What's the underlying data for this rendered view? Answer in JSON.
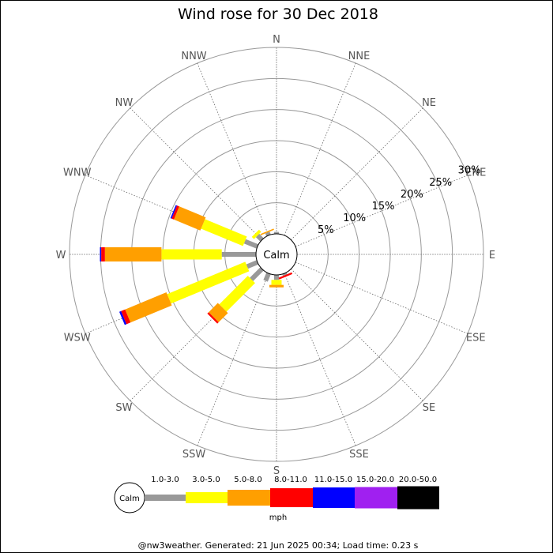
{
  "chart_data": {
    "type": "wind-rose",
    "title": "Wind rose for 30 Dec 2018",
    "unit": "mph",
    "center_label": "Calm",
    "directions": [
      "N",
      "NNE",
      "NE",
      "ENE",
      "E",
      "ESE",
      "SE",
      "SSE",
      "S",
      "SSW",
      "SW",
      "WSW",
      "W",
      "WNW",
      "NW",
      "NNW"
    ],
    "radial_ticks": [
      "5%",
      "10%",
      "15%",
      "20%",
      "25%",
      "30%"
    ],
    "radial_values": [
      5,
      10,
      15,
      20,
      25,
      30
    ],
    "rmax": 30,
    "speed_bins": [
      {
        "label": "1.0-3.0",
        "color": "#999999"
      },
      {
        "label": "3.0-5.0",
        "color": "#ffff00"
      },
      {
        "label": "5.0-8.0",
        "color": "#ff9f00"
      },
      {
        "label": "8.0-11.0",
        "color": "#ff0000"
      },
      {
        "label": "11.0-15.0",
        "color": "#0000ff"
      },
      {
        "label": "15.0-20.0",
        "color": "#a020f0"
      },
      {
        "label": "20.0-50.0",
        "color": "#000000"
      }
    ],
    "series": [
      {
        "direction": "NNW",
        "values": [
          0.5,
          0.0,
          0.2,
          0.0,
          0.0,
          0.0,
          0.0
        ]
      },
      {
        "direction": "N",
        "values": [
          0.3,
          0.0,
          0.0,
          0.0,
          0.0,
          0.0,
          0.0
        ]
      },
      {
        "direction": "NW",
        "values": [
          1.0,
          0.5,
          0.0,
          0.0,
          0.0,
          0.0,
          0.0
        ]
      },
      {
        "direction": "WNW",
        "values": [
          2.2,
          7.3,
          4.6,
          0.4,
          0.2,
          0.0,
          0.0
        ]
      },
      {
        "direction": "W",
        "values": [
          5.5,
          9.7,
          9.1,
          0.6,
          0.2,
          0.0,
          0.0
        ]
      },
      {
        "direction": "WSW",
        "values": [
          1.8,
          13.6,
          7.2,
          0.7,
          0.3,
          0.0,
          0.0
        ]
      },
      {
        "direction": "SW",
        "values": [
          2.4,
          6.5,
          2.1,
          0.3,
          0.0,
          0.0,
          0.0
        ]
      },
      {
        "direction": "SSW",
        "values": [
          1.3,
          0.0,
          0.0,
          0.0,
          0.0,
          0.0,
          0.0
        ]
      },
      {
        "direction": "S",
        "values": [
          0.8,
          0.8,
          0.4,
          0.0,
          0.0,
          0.0,
          0.0
        ]
      },
      {
        "direction": "SSE",
        "values": [
          0.3,
          0.0,
          0.0,
          0.3,
          0.0,
          0.0,
          0.0
        ]
      }
    ]
  },
  "footer": "@nw3weather. Generated: 21 Jun 2025 00:34; Load time: 0.23 s"
}
